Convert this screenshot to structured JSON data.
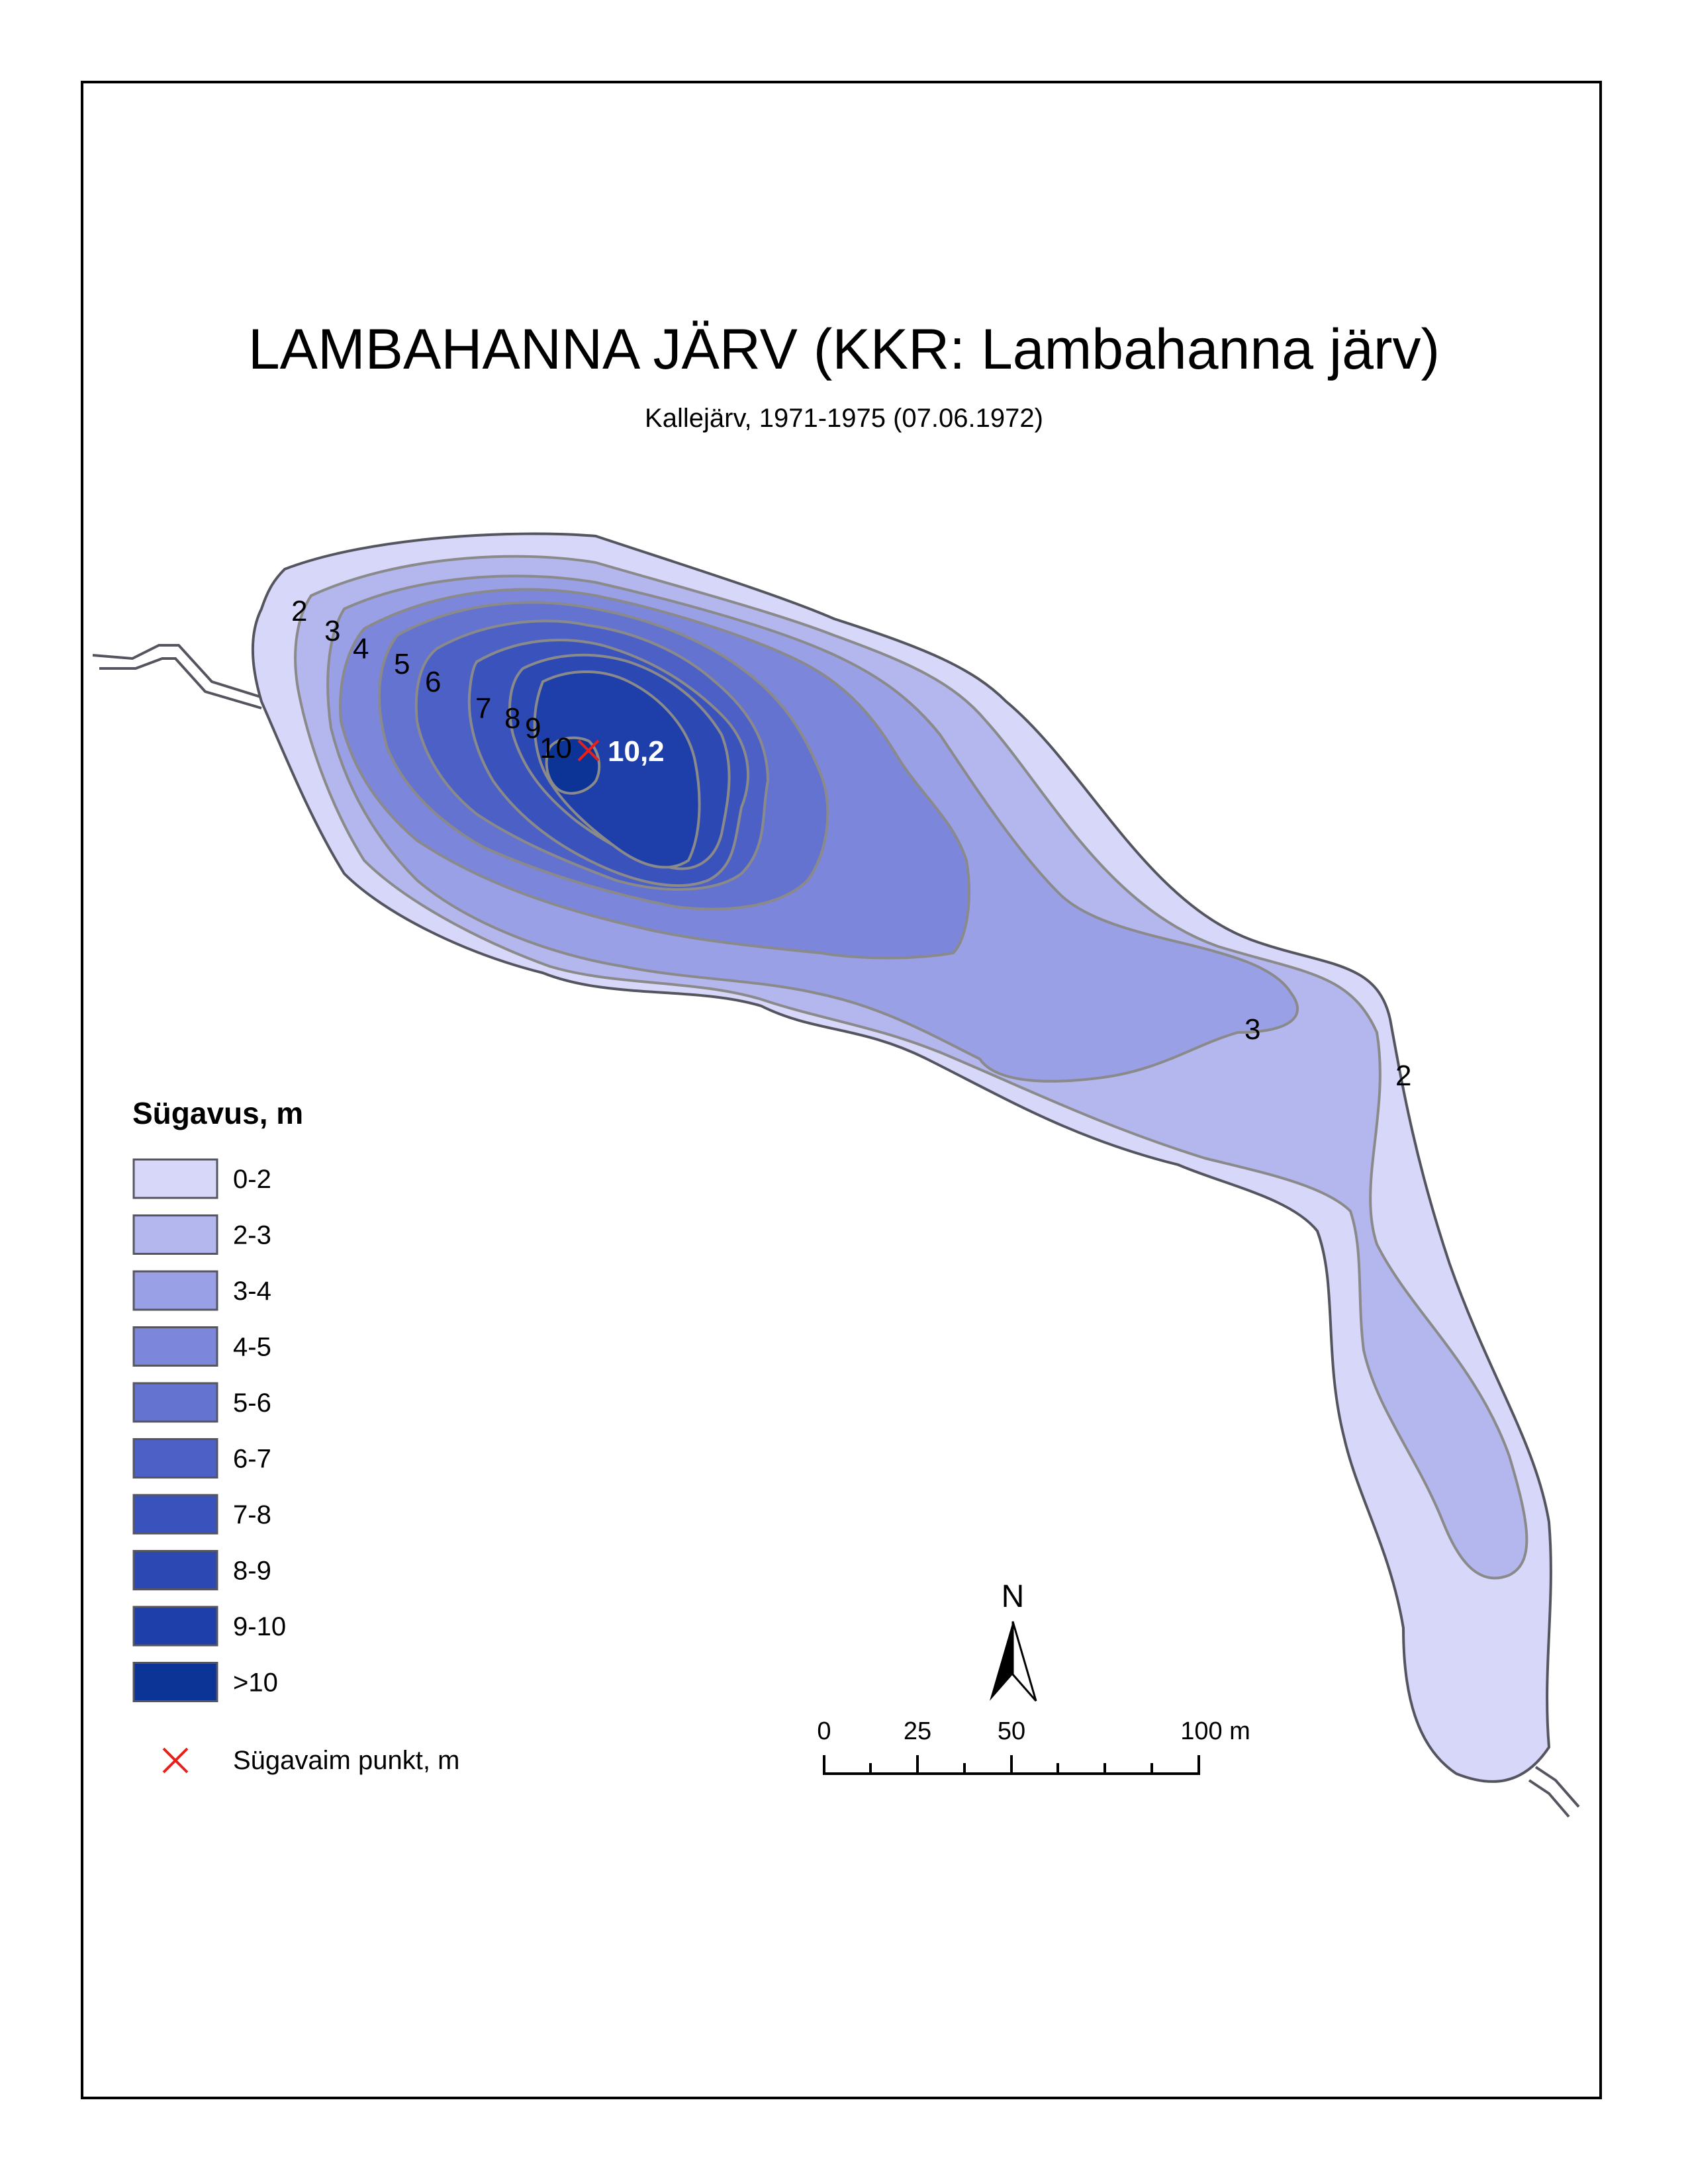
{
  "title": "LAMBAHANNA JÄRV (KKR: Lambahanna järv)",
  "subtitle": "Kallejärv, 1971-1975 (07.06.1972)",
  "contour_labels": [
    "2",
    "3",
    "4",
    "5",
    "6",
    "7",
    "8",
    "9",
    "10",
    "3",
    "2"
  ],
  "deepest_point_value": "10,2",
  "legend": {
    "title": "Sügavus, m",
    "classes": [
      {
        "label": "0-2",
        "color": "#d7d7fa"
      },
      {
        "label": "2-3",
        "color": "#b4b6ee"
      },
      {
        "label": "3-4",
        "color": "#9aa0e6"
      },
      {
        "label": "4-5",
        "color": "#7c86da"
      },
      {
        "label": "5-6",
        "color": "#6472d0"
      },
      {
        "label": "6-7",
        "color": "#4d60c6"
      },
      {
        "label": "7-8",
        "color": "#3a53bc"
      },
      {
        "label": "8-9",
        "color": "#2b48b3"
      },
      {
        "label": "9-10",
        "color": "#1e3ea9"
      },
      {
        "label": ">10",
        "color": "#0b3496"
      }
    ],
    "deepest_label": "Sügavaim punkt, m",
    "deepest_marker_color": "#e8201a"
  },
  "north_arrow": {
    "label": "N"
  },
  "scale_bar": {
    "tick_labels": [
      "0",
      "25",
      "50",
      "100 m"
    ]
  },
  "colors": {
    "shore_stroke": "#555560",
    "contour_stroke": "#8a8a8a"
  }
}
